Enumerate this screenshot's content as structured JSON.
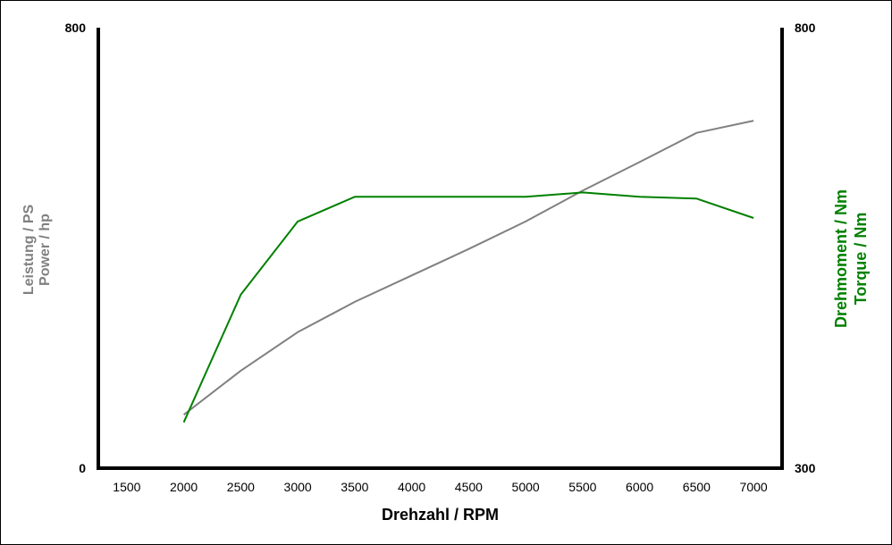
{
  "chart_data": {
    "type": "line",
    "xlabel": "Drehzahl / RPM",
    "ylabel_left": [
      "Leistung / PS",
      "Power / hp"
    ],
    "ylabel_right": [
      "Drehmoment / Nm",
      "Torque / Nm"
    ],
    "xlim": [
      1500,
      7000
    ],
    "xticks": [
      1500,
      2000,
      2500,
      3000,
      3500,
      4000,
      4500,
      5000,
      5500,
      6000,
      6500,
      7000
    ],
    "ylim_left": [
      0,
      800
    ],
    "yticks_left": [
      0,
      800
    ],
    "ylim_right": [
      300,
      800
    ],
    "yticks_right": [
      300,
      800
    ],
    "grid": false,
    "colors": {
      "power": "#808080",
      "torque": "#008000",
      "left_title": "#808080",
      "right_title": "#008000"
    },
    "series": [
      {
        "axis": "left",
        "color": "#808080",
        "x": [
          2000,
          2500,
          3000,
          3500,
          4000,
          4500,
          5000,
          5500,
          6000,
          6500,
          7000
        ],
        "values": [
          97,
          177,
          247,
          302,
          350,
          398,
          448,
          504,
          556,
          609,
          631
        ]
      },
      {
        "axis": "right",
        "color": "#008000",
        "x": [
          2000,
          2500,
          3000,
          3500,
          4000,
          4500,
          5000,
          5500,
          6000,
          6500,
          7000
        ],
        "values": [
          352,
          497,
          580,
          608,
          608,
          608,
          608,
          613,
          608,
          606,
          584
        ]
      }
    ]
  }
}
